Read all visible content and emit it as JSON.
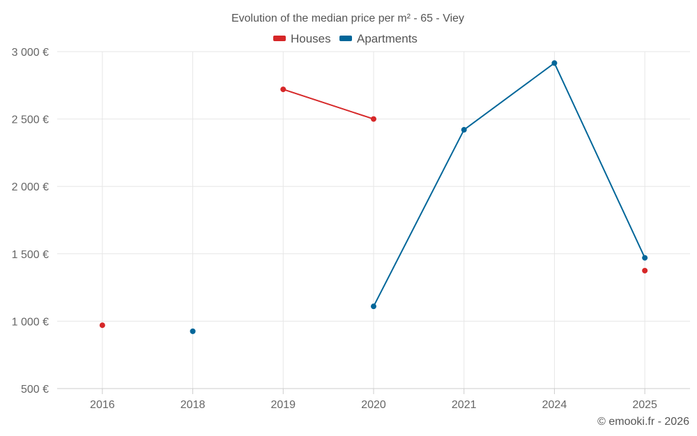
{
  "chart_data": {
    "type": "line",
    "title": "Evolution of the median price per m² - 65 - Viey",
    "categories": [
      "2016",
      "2018",
      "2019",
      "2020",
      "2021",
      "2024",
      "2025"
    ],
    "ylim": [
      500,
      3000
    ],
    "yticks": [
      500,
      1000,
      1500,
      2000,
      2500,
      3000
    ],
    "ytick_labels": [
      "500 €",
      "1 000 €",
      "1 500 €",
      "2 000 €",
      "2 500 €",
      "3 000 €"
    ],
    "grid": true,
    "legend_position": "top-center",
    "series": [
      {
        "name": "Houses",
        "color": "#d62728",
        "values": [
          970,
          null,
          2720,
          2500,
          null,
          null,
          1375
        ]
      },
      {
        "name": "Apartments",
        "color": "#006699",
        "values": [
          null,
          925,
          null,
          1110,
          2420,
          2915,
          1470
        ]
      }
    ],
    "credit": "© emooki.fr - 2026"
  }
}
